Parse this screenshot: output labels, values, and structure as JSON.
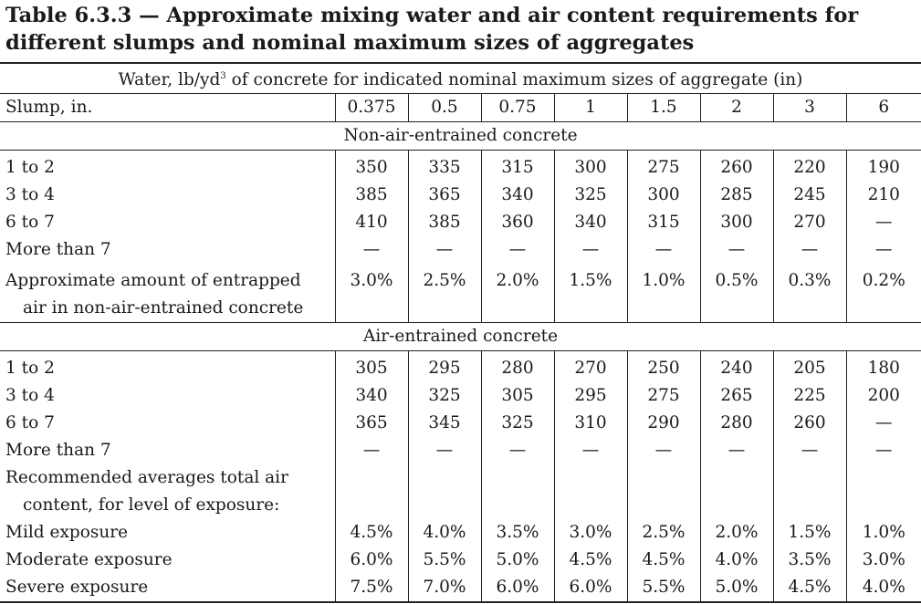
{
  "title": {
    "line1": "Table 6.3.3 — Approximate mixing water and air content requirements for",
    "line2": "different slumps and nominal maximum sizes of aggregates"
  },
  "header": {
    "caption": "Water, lb/yd",
    "caption_sup": "3",
    "caption_rest": " of concrete for indicated nominal maximum sizes of aggregate (in)",
    "slump_label": "Slump, in.",
    "sizes": [
      "0.375",
      "0.5",
      "0.75",
      "1",
      "1.5",
      "2",
      "3",
      "6"
    ]
  },
  "non_air": {
    "section_label": "Non-air-entrained concrete",
    "rows": [
      {
        "label": "1  to  2",
        "values": [
          "350",
          "335",
          "315",
          "300",
          "275",
          "260",
          "220",
          "190"
        ]
      },
      {
        "label": "3  to  4",
        "values": [
          "385",
          "365",
          "340",
          "325",
          "300",
          "285",
          "245",
          "210"
        ]
      },
      {
        "label": "6  to  7",
        "values": [
          "410",
          "385",
          "360",
          "340",
          "315",
          "300",
          "270",
          "—"
        ]
      },
      {
        "label": "More than 7",
        "values": [
          "—",
          "—",
          "—",
          "—",
          "—",
          "—",
          "—",
          "—"
        ]
      }
    ],
    "entrapped": {
      "label1": "Approximate amount of entrapped",
      "label2": "air in non-air-entrained concrete",
      "values": [
        "3.0%",
        "2.5%",
        "2.0%",
        "1.5%",
        "1.0%",
        "0.5%",
        "0.3%",
        "0.2%"
      ]
    }
  },
  "air": {
    "section_label": "Air-entrained concrete",
    "rows": [
      {
        "label": "1  to  2",
        "values": [
          "305",
          "295",
          "280",
          "270",
          "250",
          "240",
          "205",
          "180"
        ]
      },
      {
        "label": "3  to  4",
        "values": [
          "340",
          "325",
          "305",
          "295",
          "275",
          "265",
          "225",
          "200"
        ]
      },
      {
        "label": "6  to  7",
        "values": [
          "365",
          "345",
          "325",
          "310",
          "290",
          "280",
          "260",
          "—"
        ]
      },
      {
        "label": "More than 7",
        "values": [
          "—",
          "—",
          "—",
          "—",
          "—",
          "—",
          "—",
          "—"
        ]
      }
    ],
    "recommended": {
      "label1": "Recommended averages total air",
      "label2": "content, for level of exposure:"
    },
    "exposure": [
      {
        "label": "Mild exposure",
        "values": [
          "4.5%",
          "4.0%",
          "3.5%",
          "3.0%",
          "2.5%",
          "2.0%",
          "1.5%",
          "1.0%"
        ]
      },
      {
        "label": "Moderate exposure",
        "values": [
          "6.0%",
          "5.5%",
          "5.0%",
          "4.5%",
          "4.5%",
          "4.0%",
          "3.5%",
          "3.0%"
        ]
      },
      {
        "label": "Severe exposure",
        "values": [
          "7.5%",
          "7.0%",
          "6.0%",
          "6.0%",
          "5.5%",
          "5.0%",
          "4.5%",
          "4.0%"
        ]
      }
    ]
  }
}
